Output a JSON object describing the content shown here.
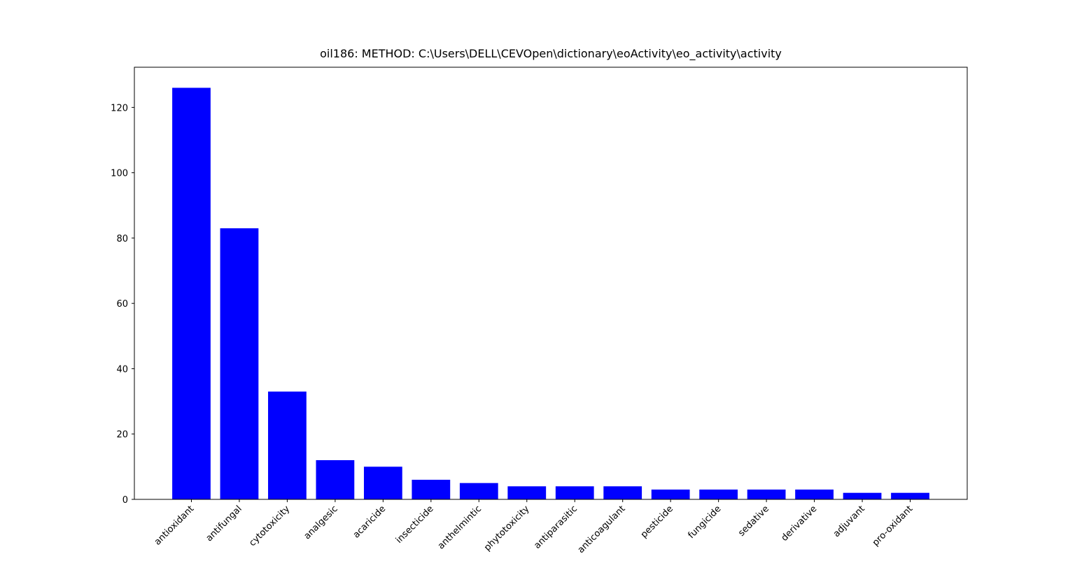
{
  "chart_data": {
    "type": "bar",
    "title": "oil186:   METHOD:   C:\\Users\\DELL\\CEVOpen\\dictionary\\eoActivity\\eo_activity\\activity",
    "categories": [
      "antioxidant",
      "antifungal",
      "cytotoxicity",
      "analgesic",
      "acaricide",
      "insecticide",
      "anthelmintic",
      "phytotoxicity",
      "antiparasitic",
      "anticoagulant",
      "pesticide",
      "fungicide",
      "sedative",
      "derivative",
      "adjuvant",
      "pro-oxidant"
    ],
    "values": [
      126,
      83,
      33,
      12,
      10,
      6,
      5,
      4,
      4,
      4,
      3,
      3,
      3,
      3,
      2,
      2
    ],
    "color": "#0000ff",
    "ylim": [
      0,
      132.3
    ],
    "yticks": [
      0,
      20,
      40,
      60,
      80,
      100,
      120
    ]
  }
}
